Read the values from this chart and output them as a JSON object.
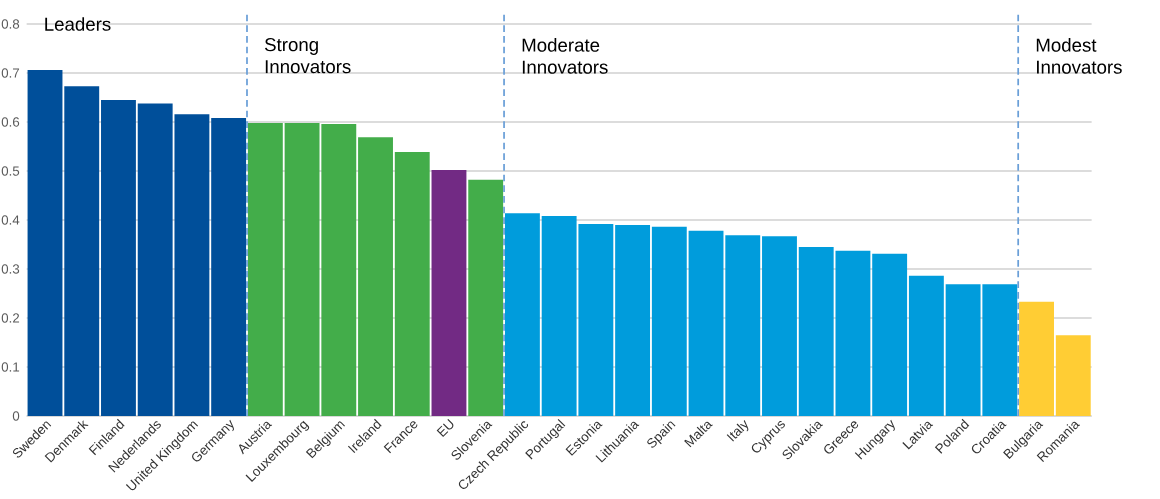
{
  "chart_data": {
    "type": "bar",
    "categories": [
      "Sweden",
      "Denmark",
      "Finland",
      "Nederlands",
      "United Kingdom",
      "Germany",
      "Austria",
      "Louxembourg",
      "Belgium",
      "Ireland",
      "France",
      "EU",
      "Slovenia",
      "Czech Republic",
      "Portugal",
      "Estonia",
      "Lithuania",
      "Spain",
      "Malta",
      "Italy",
      "Cyprus",
      "Slovakia",
      "Greece",
      "Hungary",
      "Latvia",
      "Poland",
      "Croatia",
      "Bulgaria",
      "Romania"
    ],
    "values": [
      0.706,
      0.673,
      0.645,
      0.638,
      0.616,
      0.608,
      0.598,
      0.598,
      0.596,
      0.569,
      0.539,
      0.502,
      0.482,
      0.414,
      0.408,
      0.392,
      0.39,
      0.386,
      0.378,
      0.369,
      0.367,
      0.345,
      0.337,
      0.331,
      0.286,
      0.269,
      0.269,
      0.233,
      0.165
    ],
    "colors": [
      "#004f9a",
      "#004f9a",
      "#004f9a",
      "#004f9a",
      "#004f9a",
      "#004f9a",
      "#43ad4a",
      "#43ad4a",
      "#43ad4a",
      "#43ad4a",
      "#43ad4a",
      "#722a84",
      "#43ad4a",
      "#009cdc",
      "#009cdc",
      "#009cdc",
      "#009cdc",
      "#009cdc",
      "#009cdc",
      "#009cdc",
      "#009cdc",
      "#009cdc",
      "#009cdc",
      "#009cdc",
      "#009cdc",
      "#009cdc",
      "#009cdc",
      "#ffcd34",
      "#ffcd34"
    ],
    "ylim": [
      0,
      0.8
    ],
    "yticks": [
      0,
      0.1,
      0.2,
      0.3,
      0.4,
      0.5,
      0.6,
      0.7,
      0.8
    ],
    "grid": "y",
    "annotations": [
      "Leaders",
      "Strong Innovators",
      "Moderate Innovators",
      "Modest Innovators"
    ]
  }
}
